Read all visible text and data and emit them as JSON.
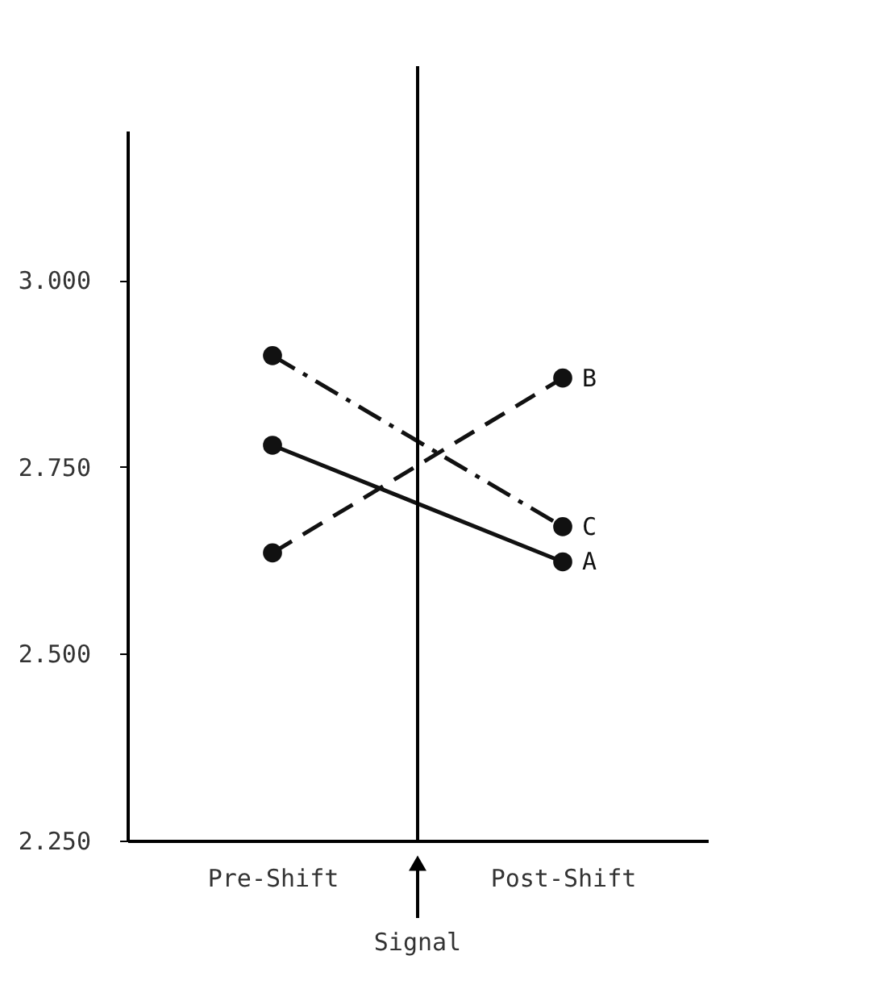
{
  "chart_data": {
    "type": "line",
    "categories": [
      "Pre-Shift",
      "Post-Shift"
    ],
    "series": [
      {
        "name": "A",
        "color": "#111111",
        "values": [
          2.779,
          2.623
        ],
        "line_style": "solid"
      },
      {
        "name": "B",
        "color": "#111111",
        "values": [
          2.635,
          2.869
        ],
        "line_style": "dashed"
      },
      {
        "name": "C",
        "color": "#111111",
        "values": [
          2.899,
          2.67
        ],
        "line_style": "dashdot"
      }
    ],
    "ylim": [
      2.25,
      3.2
    ],
    "yticks": [
      {
        "value": 2.25,
        "label": "2.250"
      },
      {
        "value": 2.5,
        "label": "2.500"
      },
      {
        "value": 2.75,
        "label": "2.750"
      },
      {
        "value": 3.0,
        "label": "3.000"
      }
    ],
    "annotations": [
      "Signal"
    ],
    "marker": "circle",
    "grid": false,
    "legend": false
  }
}
